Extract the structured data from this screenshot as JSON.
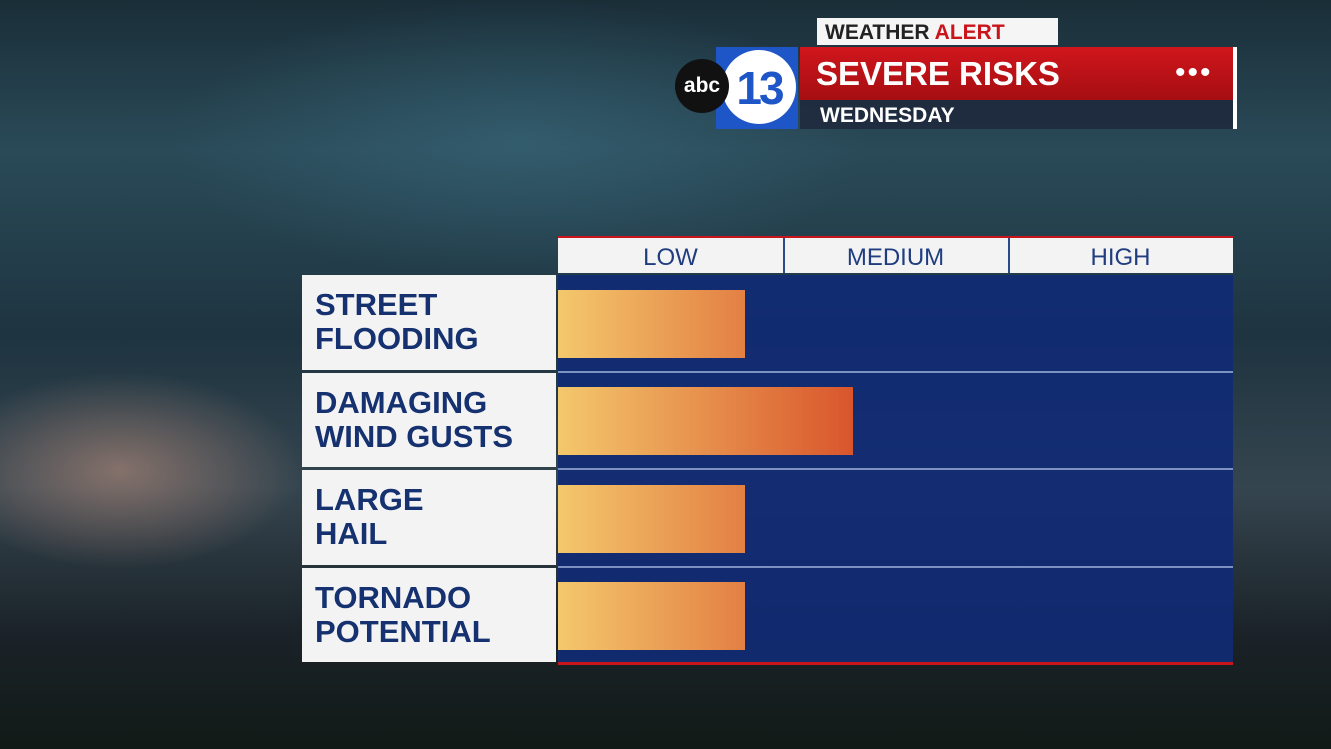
{
  "header": {
    "banner": {
      "first": "WEATHER",
      "second": "ALERT"
    },
    "logo": {
      "network": "abc",
      "channel": "13"
    }
  },
  "chart_data": {
    "type": "hbar",
    "title": "SEVERE RISKS",
    "subtitle": "WEDNESDAY",
    "categories": [
      "STREET\nFLOODING",
      "DAMAGING\nWIND GUSTS",
      "LARGE\nHAIL",
      "TORNADO\nPOTENTIAL"
    ],
    "values": [
      0.83,
      1.31,
      0.83,
      0.83
    ],
    "xlim": [
      0,
      3
    ],
    "xticks": [
      {
        "value": 0.5,
        "label": "LOW"
      },
      {
        "value": 1.5,
        "label": "MEDIUM"
      },
      {
        "value": 2.5,
        "label": "HIGH"
      }
    ],
    "colors": [
      "#f4c86c",
      "#d8522a"
    ]
  }
}
